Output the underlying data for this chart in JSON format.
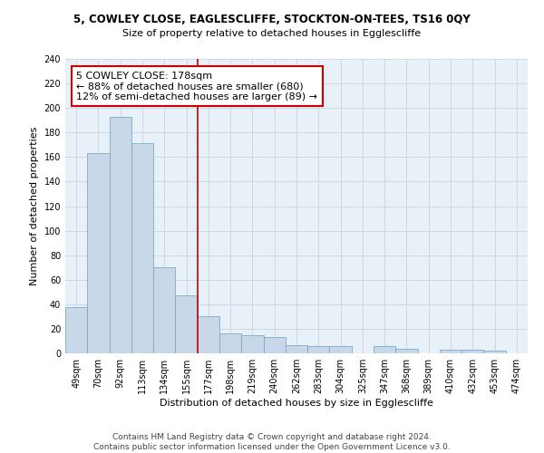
{
  "title_line1": "5, COWLEY CLOSE, EAGLESCLIFFE, STOCKTON-ON-TEES, TS16 0QY",
  "title_line2": "Size of property relative to detached houses in Egglescliffe",
  "xlabel": "Distribution of detached houses by size in Egglescliffe",
  "ylabel": "Number of detached properties",
  "bar_labels": [
    "49sqm",
    "70sqm",
    "92sqm",
    "113sqm",
    "134sqm",
    "155sqm",
    "177sqm",
    "198sqm",
    "219sqm",
    "240sqm",
    "262sqm",
    "283sqm",
    "304sqm",
    "325sqm",
    "347sqm",
    "368sqm",
    "389sqm",
    "410sqm",
    "432sqm",
    "453sqm",
    "474sqm"
  ],
  "bar_values": [
    38,
    163,
    193,
    171,
    70,
    47,
    30,
    16,
    15,
    13,
    7,
    6,
    6,
    0,
    6,
    4,
    0,
    3,
    3,
    2,
    0
  ],
  "bar_color": "#c8d8e8",
  "bar_edge_color": "#7aaac8",
  "vline_x": 6,
  "vline_color": "#cc0000",
  "annotation_text": "5 COWLEY CLOSE: 178sqm\n← 88% of detached houses are smaller (680)\n12% of semi-detached houses are larger (89) →",
  "annotation_box_color": "#ffffff",
  "annotation_box_edge": "#cc0000",
  "ylim": [
    0,
    240
  ],
  "yticks": [
    0,
    20,
    40,
    60,
    80,
    100,
    120,
    140,
    160,
    180,
    200,
    220,
    240
  ],
  "grid_color": "#ccd8e4",
  "bg_color": "#e8f0f8",
  "footnote_line1": "Contains HM Land Registry data © Crown copyright and database right 2024.",
  "footnote_line2": "Contains public sector information licensed under the Open Government Licence v3.0.",
  "title_fontsize": 8.5,
  "subtitle_fontsize": 8,
  "axis_label_fontsize": 8,
  "tick_fontsize": 7,
  "annotation_fontsize": 8,
  "footnote_fontsize": 6.5
}
